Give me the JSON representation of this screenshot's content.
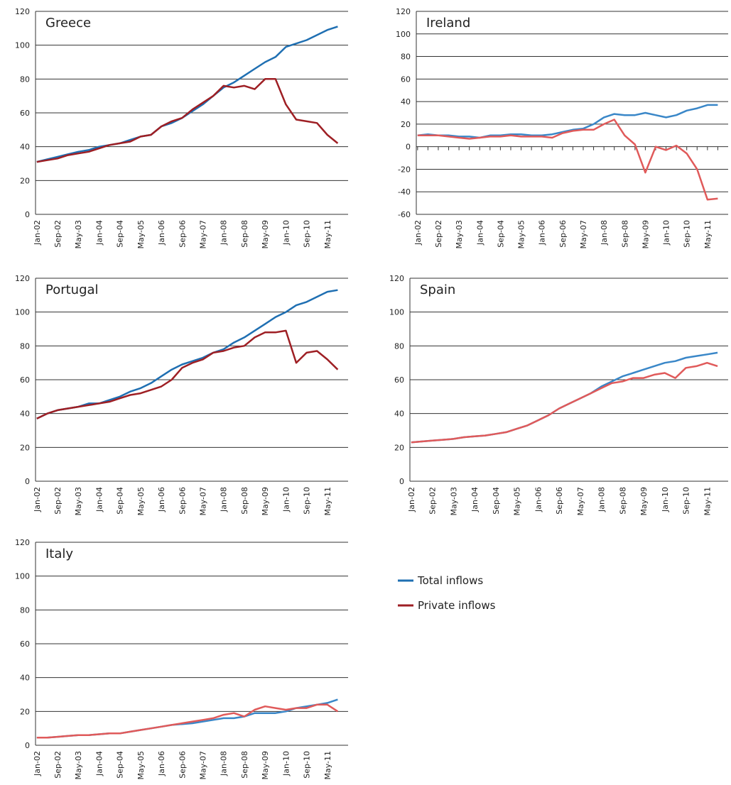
{
  "chart_data": [
    {
      "type": "line",
      "title": "Greece",
      "ylim": [
        0,
        120
      ],
      "yticks": [
        0,
        20,
        40,
        60,
        80,
        100,
        120
      ],
      "categories": [
        "Jan-02",
        null,
        "Sep-02",
        null,
        "May-03",
        null,
        "Jan-04",
        null,
        "Sep-04",
        null,
        "May-05",
        null,
        "Jan-06",
        null,
        "Sep-06",
        null,
        "May-07",
        null,
        "Jan-08",
        null,
        "Sep-08",
        null,
        "May-09",
        null,
        "Jan-10",
        null,
        "Sep-10",
        null,
        "May-11",
        null
      ],
      "series": [
        {
          "color": "#1f6fb2",
          "values": [
            31,
            32.5,
            34,
            35.5,
            37,
            38,
            40,
            41,
            42,
            44,
            46,
            47,
            52,
            54,
            57,
            61,
            65,
            70,
            75,
            78,
            82,
            86,
            90,
            93,
            99,
            101,
            103,
            106,
            109,
            111
          ]
        },
        {
          "color": "#9e1f24",
          "values": [
            31,
            32,
            33,
            35,
            36,
            37,
            39,
            41,
            42,
            43,
            46,
            47,
            52,
            55,
            57,
            62,
            66,
            70,
            76,
            75,
            76,
            74,
            80,
            80,
            65,
            56,
            55,
            54,
            47,
            42
          ]
        }
      ]
    },
    {
      "type": "line",
      "title": "Ireland",
      "ylim": [
        -60,
        120
      ],
      "yticks": [
        -60,
        -40,
        -20,
        0,
        20,
        40,
        60,
        80,
        100,
        120
      ],
      "categories": [
        "Jan-02",
        null,
        "Sep-02",
        null,
        "May-03",
        null,
        "Jan-04",
        null,
        "Sep-04",
        null,
        "May-05",
        null,
        "Jan-06",
        null,
        "Sep-06",
        null,
        "May-07",
        null,
        "Jan-08",
        null,
        "Sep-08",
        null,
        "May-09",
        null,
        "Jan-10",
        null,
        "Sep-10",
        null,
        "May-11",
        null
      ],
      "series": [
        {
          "color": "#3a87c8",
          "values": [
            10,
            11,
            10,
            10,
            9,
            9,
            8,
            10,
            10,
            11,
            11,
            10,
            10,
            11,
            13,
            15,
            16,
            20,
            26,
            29,
            28,
            28,
            30,
            28,
            26,
            28,
            32,
            34,
            37,
            37
          ]
        },
        {
          "color": "#e05a5a",
          "values": [
            10,
            10,
            10,
            9,
            8,
            7,
            8,
            9,
            9,
            10,
            9,
            9,
            9,
            8,
            12,
            14,
            15,
            15,
            20,
            24,
            10,
            2,
            -23,
            0,
            -3,
            1,
            -6,
            -20,
            -47,
            -46
          ]
        }
      ]
    },
    {
      "type": "line",
      "title": "Portugal",
      "ylim": [
        0,
        120
      ],
      "yticks": [
        0,
        20,
        40,
        60,
        80,
        100,
        120
      ],
      "categories": [
        "Jan-02",
        null,
        "Sep-02",
        null,
        "May-03",
        null,
        "Jan-04",
        null,
        "Sep-04",
        null,
        "May-05",
        null,
        "Jan-06",
        null,
        "Sep-06",
        null,
        "May-07",
        null,
        "Jan-08",
        null,
        "Sep-08",
        null,
        "May-09",
        null,
        "Jan-10",
        null,
        "Sep-10",
        null,
        "May-11",
        null
      ],
      "series": [
        {
          "color": "#1f6fb2",
          "values": [
            37,
            40,
            42,
            43,
            44,
            46,
            46,
            48,
            50,
            53,
            55,
            58,
            62,
            66,
            69,
            71,
            73,
            76,
            78,
            82,
            85,
            89,
            93,
            97,
            100,
            104,
            106,
            109,
            112,
            113
          ]
        },
        {
          "color": "#9e1f24",
          "values": [
            37,
            40,
            42,
            43,
            44,
            45,
            46,
            47,
            49,
            51,
            52,
            54,
            56,
            60,
            67,
            70,
            72,
            76,
            77,
            79,
            80,
            85,
            88,
            88,
            89,
            70,
            76,
            77,
            72,
            66
          ]
        }
      ]
    },
    {
      "type": "line",
      "title": "Spain",
      "ylim": [
        0,
        120
      ],
      "yticks": [
        0,
        20,
        40,
        60,
        80,
        100,
        120
      ],
      "categories": [
        "Jan-02",
        null,
        "Sep-02",
        null,
        "May-03",
        null,
        "Jan-04",
        null,
        "Sep-04",
        null,
        "May-05",
        null,
        "Jan-06",
        null,
        "Sep-06",
        null,
        "May-07",
        null,
        "Jan-08",
        null,
        "Sep-08",
        null,
        "May-09",
        null,
        "Jan-10",
        null,
        "Sep-10",
        null,
        "May-11",
        null
      ],
      "series": [
        {
          "color": "#3a87c8",
          "values": [
            23,
            23.5,
            24,
            24.5,
            25,
            26,
            26.5,
            27,
            28,
            29,
            31,
            33,
            36,
            39,
            43,
            46,
            49,
            52,
            56,
            59,
            62,
            64,
            66,
            68,
            70,
            71,
            73,
            74,
            75,
            76
          ]
        },
        {
          "color": "#e05a5a",
          "values": [
            23,
            23.5,
            24,
            24.5,
            25,
            26,
            26.5,
            27,
            28,
            29,
            31,
            33,
            36,
            39,
            43,
            46,
            49,
            52,
            55,
            58,
            59,
            61,
            61,
            63,
            64,
            61,
            67,
            68,
            70,
            68
          ]
        }
      ]
    },
    {
      "type": "line",
      "title": "Italy",
      "ylim": [
        0,
        120
      ],
      "yticks": [
        0,
        20,
        40,
        60,
        80,
        100,
        120
      ],
      "categories": [
        "Jan-02",
        null,
        "Sep-02",
        null,
        "May-03",
        null,
        "Jan-04",
        null,
        "Sep-04",
        null,
        "May-05",
        null,
        "Jan-06",
        null,
        "Sep-06",
        null,
        "May-07",
        null,
        "Jan-08",
        null,
        "Sep-08",
        null,
        "May-09",
        null,
        "Jan-10",
        null,
        "Sep-10",
        null,
        "May-11",
        null
      ],
      "series": [
        {
          "color": "#3a87c8",
          "values": [
            4.5,
            4.5,
            5,
            5.5,
            6,
            6,
            6.5,
            7,
            7,
            8,
            9,
            10,
            11,
            12,
            12.5,
            13,
            14,
            15,
            16,
            16,
            17,
            19,
            19,
            19,
            20,
            22,
            23,
            24,
            25,
            27
          ]
        },
        {
          "color": "#e05a5a",
          "values": [
            4.5,
            4.5,
            5,
            5.5,
            6,
            6,
            6.5,
            7,
            7,
            8,
            9,
            10,
            11,
            12,
            13,
            14,
            15,
            16,
            18,
            19,
            17,
            21,
            23,
            22,
            21,
            22,
            22,
            24,
            24,
            20
          ]
        }
      ]
    }
  ],
  "legend": {
    "items": [
      {
        "name": "Total inflows",
        "color": "#1f6fb2"
      },
      {
        "name": "Private inflows",
        "color": "#9e1f24"
      }
    ]
  }
}
